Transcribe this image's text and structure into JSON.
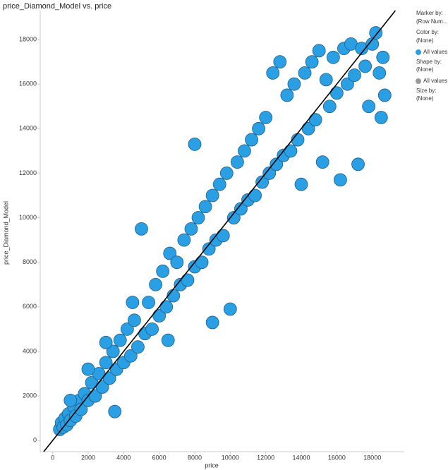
{
  "chart_data": {
    "type": "scatter",
    "title": "price_Diamond_Model vs. price",
    "x_label": "price",
    "y_label": "price_Diamond_Model",
    "color": "#2a9fe4",
    "edge_color": "#1f5f87",
    "xlim": [
      -700,
      19800
    ],
    "ylim": [
      -500,
      19300
    ],
    "xticks": [
      0,
      2000,
      4000,
      6000,
      8000,
      10000,
      12000,
      14000,
      16000,
      18000
    ],
    "yticks": [
      0,
      2000,
      4000,
      6000,
      8000,
      10000,
      12000,
      14000,
      16000,
      18000
    ],
    "legend_panel": [
      "Marker by:",
      "(Row Num...",
      "Color by:",
      "(None)",
      "All values",
      "Shape by:",
      "(None)",
      "All values",
      "Size by:",
      "(None)"
    ],
    "x": [
      400,
      500,
      600,
      700,
      800,
      900,
      1000,
      1200,
      1300,
      1500,
      1600,
      1800,
      2000,
      2200,
      2400,
      2600,
      2800,
      3000,
      3200,
      3400,
      3500,
      3600,
      3800,
      4000,
      4200,
      4400,
      4600,
      4800,
      5000,
      5200,
      5400,
      5600,
      5800,
      6000,
      6200,
      6400,
      6600,
      6800,
      7000,
      7200,
      7400,
      7600,
      7800,
      8000,
      8200,
      8400,
      8600,
      8800,
      9000,
      9200,
      9400,
      9600,
      9800,
      10000,
      10200,
      10400,
      10600,
      10800,
      11000,
      11200,
      11400,
      11600,
      11800,
      12000,
      12200,
      12400,
      12600,
      12800,
      13000,
      13200,
      13400,
      13600,
      13800,
      14000,
      14200,
      14400,
      14600,
      14800,
      15000,
      15200,
      15400,
      15600,
      15800,
      16000,
      16200,
      16400,
      16600,
      16800,
      17000,
      17200,
      17400,
      17600,
      17800,
      18000,
      18200,
      18400,
      18500,
      18600,
      18700,
      3000,
      4500,
      6500,
      8000,
      9000,
      2000,
      1000
    ],
    "y": [
      500,
      800,
      600,
      1000,
      700,
      1200,
      900,
      1500,
      1100,
      1800,
      1400,
      2100,
      1800,
      2600,
      2000,
      3000,
      2400,
      3500,
      2800,
      4000,
      1300,
      3200,
      4500,
      3500,
      5000,
      3800,
      5400,
      4200,
      9500,
      4800,
      6200,
      5000,
      7000,
      5600,
      7600,
      6000,
      8400,
      6500,
      8000,
      7000,
      9000,
      7200,
      9500,
      7800,
      10000,
      8000,
      10500,
      8600,
      11000,
      9000,
      11500,
      9200,
      12000,
      5900,
      10000,
      12500,
      10400,
      13000,
      10800,
      13500,
      11000,
      14000,
      11600,
      14500,
      12000,
      16500,
      12400,
      17000,
      12800,
      15500,
      13000,
      16000,
      13500,
      11500,
      16500,
      14000,
      17000,
      14400,
      17500,
      12500,
      16200,
      15000,
      17200,
      15600,
      11700,
      17600,
      16000,
      17800,
      16400,
      12400,
      17600,
      16800,
      15000,
      17800,
      18300,
      16500,
      14500,
      17200,
      15500,
      4400,
      6200,
      4500,
      13300,
      5300,
      3200,
      1800
    ]
  }
}
